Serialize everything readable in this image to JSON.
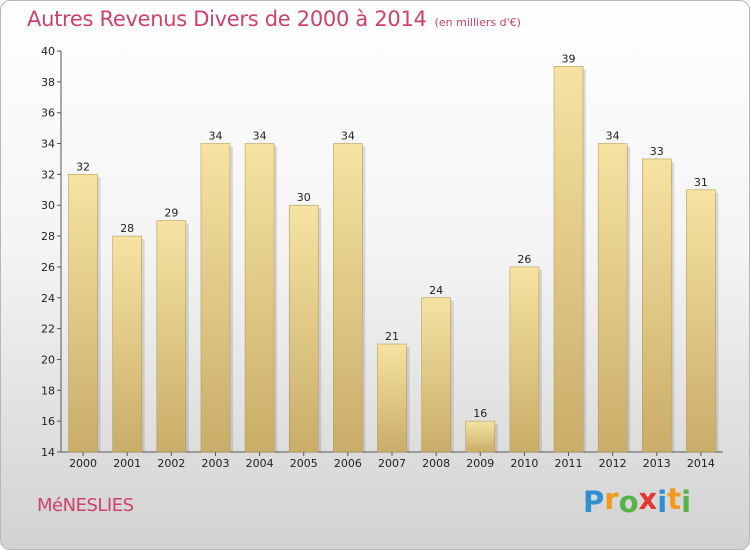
{
  "title": "Autres Revenus Divers de 2000 à 2014",
  "unit": "(en milliers d'€)",
  "town": "MéNESLIES",
  "logo": {
    "letters": [
      "P",
      "r",
      "o",
      "x",
      "i",
      "t",
      "i"
    ],
    "colors": [
      "#2f8fd0",
      "#f39a1e",
      "#58b24a",
      "#e3362f",
      "#2f8fd0",
      "#f39a1e",
      "#58b24a"
    ]
  },
  "colors": {
    "bar_light": "#f6e3a2",
    "bar_dark": "#c9ad68",
    "accent": "#d0416a"
  },
  "chart_data": {
    "type": "bar",
    "categories": [
      "2000",
      "2001",
      "2002",
      "2003",
      "2004",
      "2005",
      "2006",
      "2007",
      "2008",
      "2009",
      "2010",
      "2011",
      "2012",
      "2013",
      "2014"
    ],
    "values": [
      32,
      28,
      29,
      34,
      34,
      30,
      34,
      21,
      24,
      16,
      26,
      39,
      34,
      33,
      31
    ],
    "ylim": [
      14,
      40
    ],
    "yticks": [
      14,
      16,
      18,
      20,
      22,
      24,
      26,
      28,
      30,
      32,
      34,
      36,
      38,
      40
    ],
    "grid": false,
    "xlabel": "",
    "ylabel": ""
  }
}
